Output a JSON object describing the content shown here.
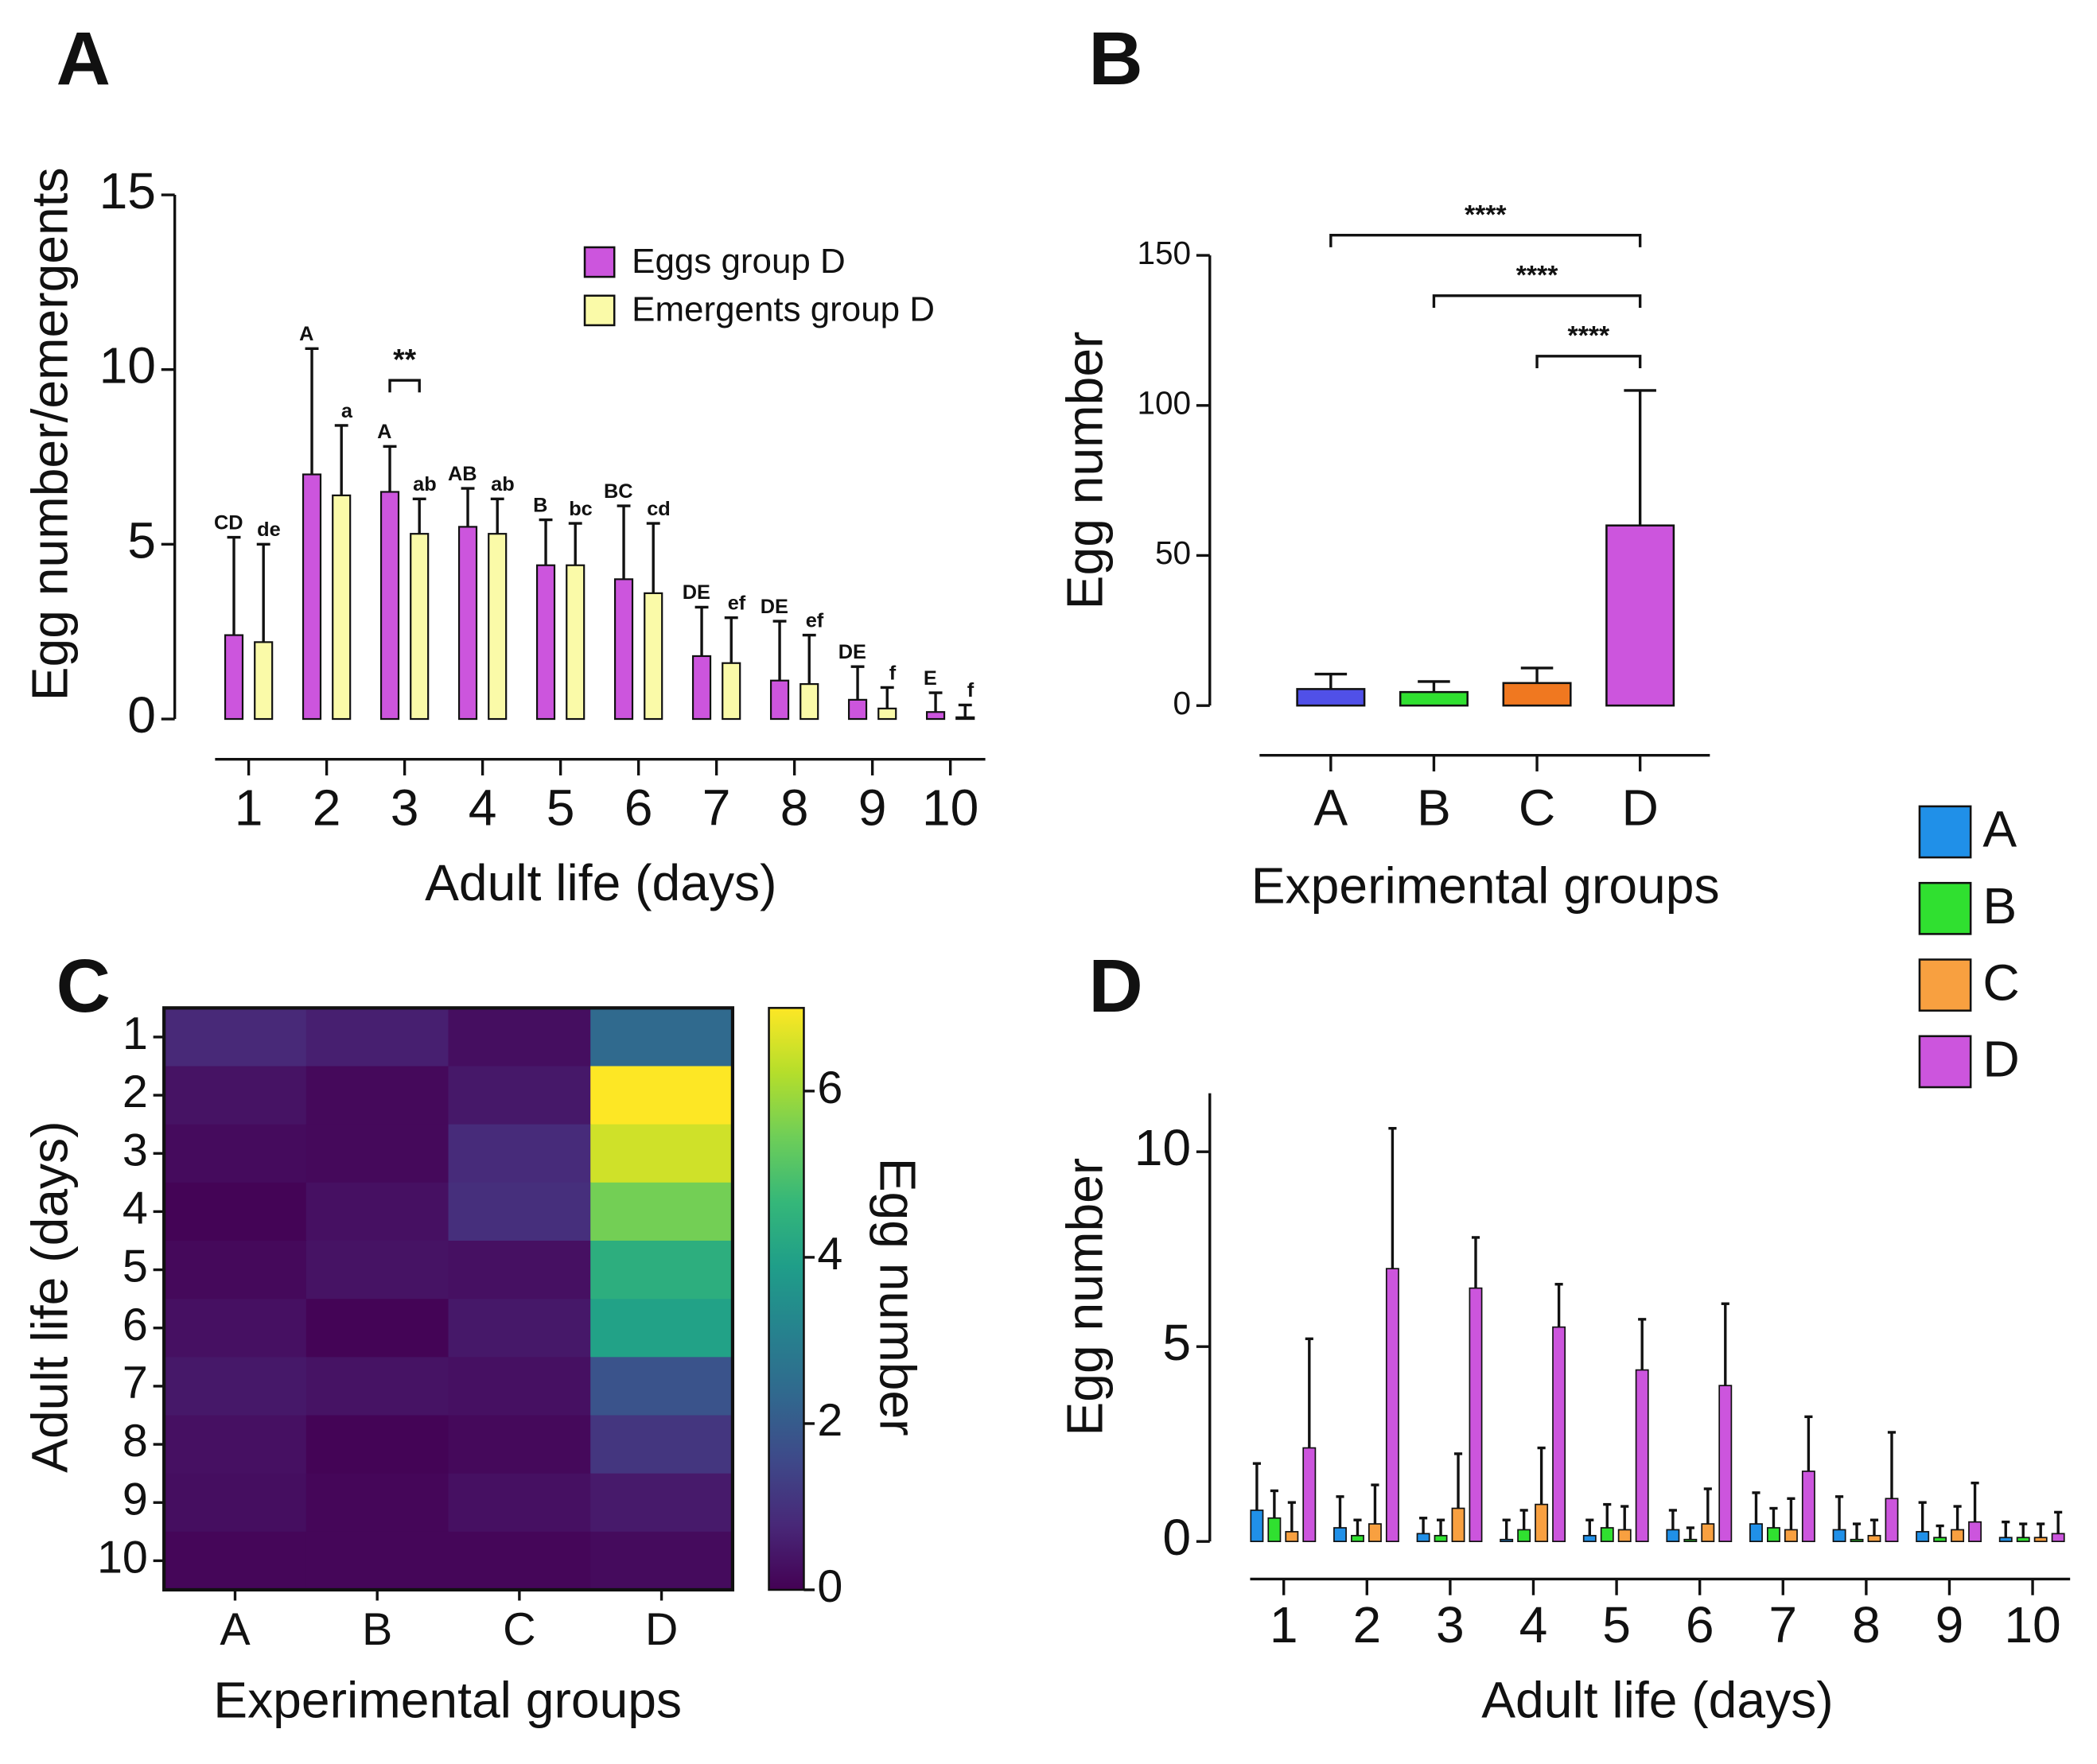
{
  "chart_data": [
    {
      "type": "bar",
      "panel_label": "A",
      "xlabel": "Adult life (days)",
      "ylabel": "Egg number/emergents",
      "categories": [
        "1",
        "2",
        "3",
        "4",
        "5",
        "6",
        "7",
        "8",
        "9",
        "10"
      ],
      "series": [
        {
          "name": "Eggs group D",
          "color": "#cc55dd",
          "values": [
            2.4,
            7.0,
            6.5,
            5.5,
            4.4,
            4.0,
            1.8,
            1.1,
            0.55,
            0.2
          ],
          "errors": [
            2.8,
            3.6,
            1.3,
            1.1,
            1.3,
            2.1,
            1.4,
            1.7,
            0.95,
            0.55
          ],
          "letters": [
            "CD",
            "A",
            "A",
            "AB",
            "B",
            "BC",
            "DE",
            "DE",
            "DE",
            "E"
          ]
        },
        {
          "name": "Emergents group D",
          "color": "#fafaa8",
          "values": [
            2.2,
            6.4,
            5.3,
            5.3,
            4.4,
            3.6,
            1.6,
            1.0,
            0.3,
            0.05
          ],
          "errors": [
            2.8,
            2.0,
            1.0,
            1.0,
            1.2,
            2.0,
            1.3,
            1.4,
            0.6,
            0.35
          ],
          "letters": [
            "de",
            "a",
            "ab",
            "ab",
            "bc",
            "cd",
            "ef",
            "ef",
            "f",
            "f"
          ]
        }
      ],
      "significance": [
        {
          "category": "3",
          "label": "**"
        }
      ],
      "ylim": [
        0,
        15
      ],
      "yticks": [
        0,
        5,
        10,
        15
      ],
      "legend": "upper right"
    },
    {
      "type": "bar",
      "panel_label": "B",
      "xlabel": "Experimental groups",
      "ylabel": "Egg number",
      "categories": [
        "A",
        "B",
        "C",
        "D"
      ],
      "colors": [
        "#5050e8",
        "#30e030",
        "#f07820",
        "#cc55dd"
      ],
      "values": [
        5.5,
        4.5,
        7.5,
        60
      ],
      "errors": [
        5,
        3.5,
        5,
        45
      ],
      "comparisons": [
        {
          "groups": [
            "A",
            "D"
          ],
          "label": "****"
        },
        {
          "groups": [
            "B",
            "D"
          ],
          "label": "****"
        },
        {
          "groups": [
            "C",
            "D"
          ],
          "label": "****"
        }
      ],
      "ylim": [
        0,
        150
      ],
      "yticks": [
        0,
        50,
        100,
        150
      ]
    },
    {
      "type": "heatmap",
      "panel_label": "C",
      "xlabel": "Experimental groups",
      "ylabel": "Adult life (days)",
      "x": [
        "A",
        "B",
        "C",
        "D"
      ],
      "y": [
        "1",
        "2",
        "3",
        "4",
        "5",
        "6",
        "7",
        "8",
        "9",
        "10"
      ],
      "values": [
        [
          0.8,
          0.6,
          0.25,
          2.4
        ],
        [
          0.35,
          0.15,
          0.45,
          7.0
        ],
        [
          0.2,
          0.15,
          0.85,
          6.5
        ],
        [
          0.05,
          0.3,
          0.95,
          5.5
        ],
        [
          0.15,
          0.35,
          0.3,
          4.4
        ],
        [
          0.3,
          0.05,
          0.45,
          4.0
        ],
        [
          0.45,
          0.35,
          0.3,
          1.8
        ],
        [
          0.3,
          0.05,
          0.15,
          1.1
        ],
        [
          0.25,
          0.1,
          0.3,
          0.5
        ],
        [
          0.1,
          0.1,
          0.1,
          0.2
        ]
      ],
      "colormap": "viridis",
      "zlim": [
        0,
        7
      ],
      "zticks": [
        0,
        2,
        4,
        6
      ],
      "colorbar_label": "Egg number"
    },
    {
      "type": "grouped-bar",
      "panel_label": "D",
      "xlabel": "Adult life (days)",
      "ylabel": "Egg number",
      "categories": [
        "1",
        "2",
        "3",
        "4",
        "5",
        "6",
        "7",
        "8",
        "9",
        "10"
      ],
      "series": [
        {
          "name": "A",
          "color": "#2090e8",
          "values": [
            0.8,
            0.35,
            0.2,
            0.05,
            0.15,
            0.3,
            0.45,
            0.3,
            0.25,
            0.1
          ],
          "errors": [
            1.2,
            0.8,
            0.4,
            0.5,
            0.4,
            0.5,
            0.8,
            0.85,
            0.75,
            0.4
          ]
        },
        {
          "name": "B",
          "color": "#30e030",
          "values": [
            0.6,
            0.15,
            0.15,
            0.3,
            0.35,
            0.05,
            0.35,
            0.05,
            0.1,
            0.1
          ],
          "errors": [
            0.7,
            0.4,
            0.4,
            0.5,
            0.6,
            0.3,
            0.5,
            0.4,
            0.3,
            0.35
          ]
        },
        {
          "name": "C",
          "color": "#f8a040",
          "values": [
            0.25,
            0.45,
            0.85,
            0.95,
            0.3,
            0.45,
            0.3,
            0.15,
            0.3,
            0.1
          ],
          "errors": [
            0.75,
            1.0,
            1.4,
            1.45,
            0.6,
            0.9,
            0.8,
            0.4,
            0.6,
            0.35
          ]
        },
        {
          "name": "D",
          "color": "#cc55dd",
          "values": [
            2.4,
            7.0,
            6.5,
            5.5,
            4.4,
            4.0,
            1.8,
            1.1,
            0.5,
            0.2
          ],
          "errors": [
            2.8,
            3.6,
            1.3,
            1.1,
            1.3,
            2.1,
            1.4,
            1.7,
            1.0,
            0.55
          ]
        }
      ],
      "ylim": [
        0,
        11.5
      ],
      "yticks": [
        0,
        5,
        10
      ],
      "legend": "outside right"
    }
  ]
}
